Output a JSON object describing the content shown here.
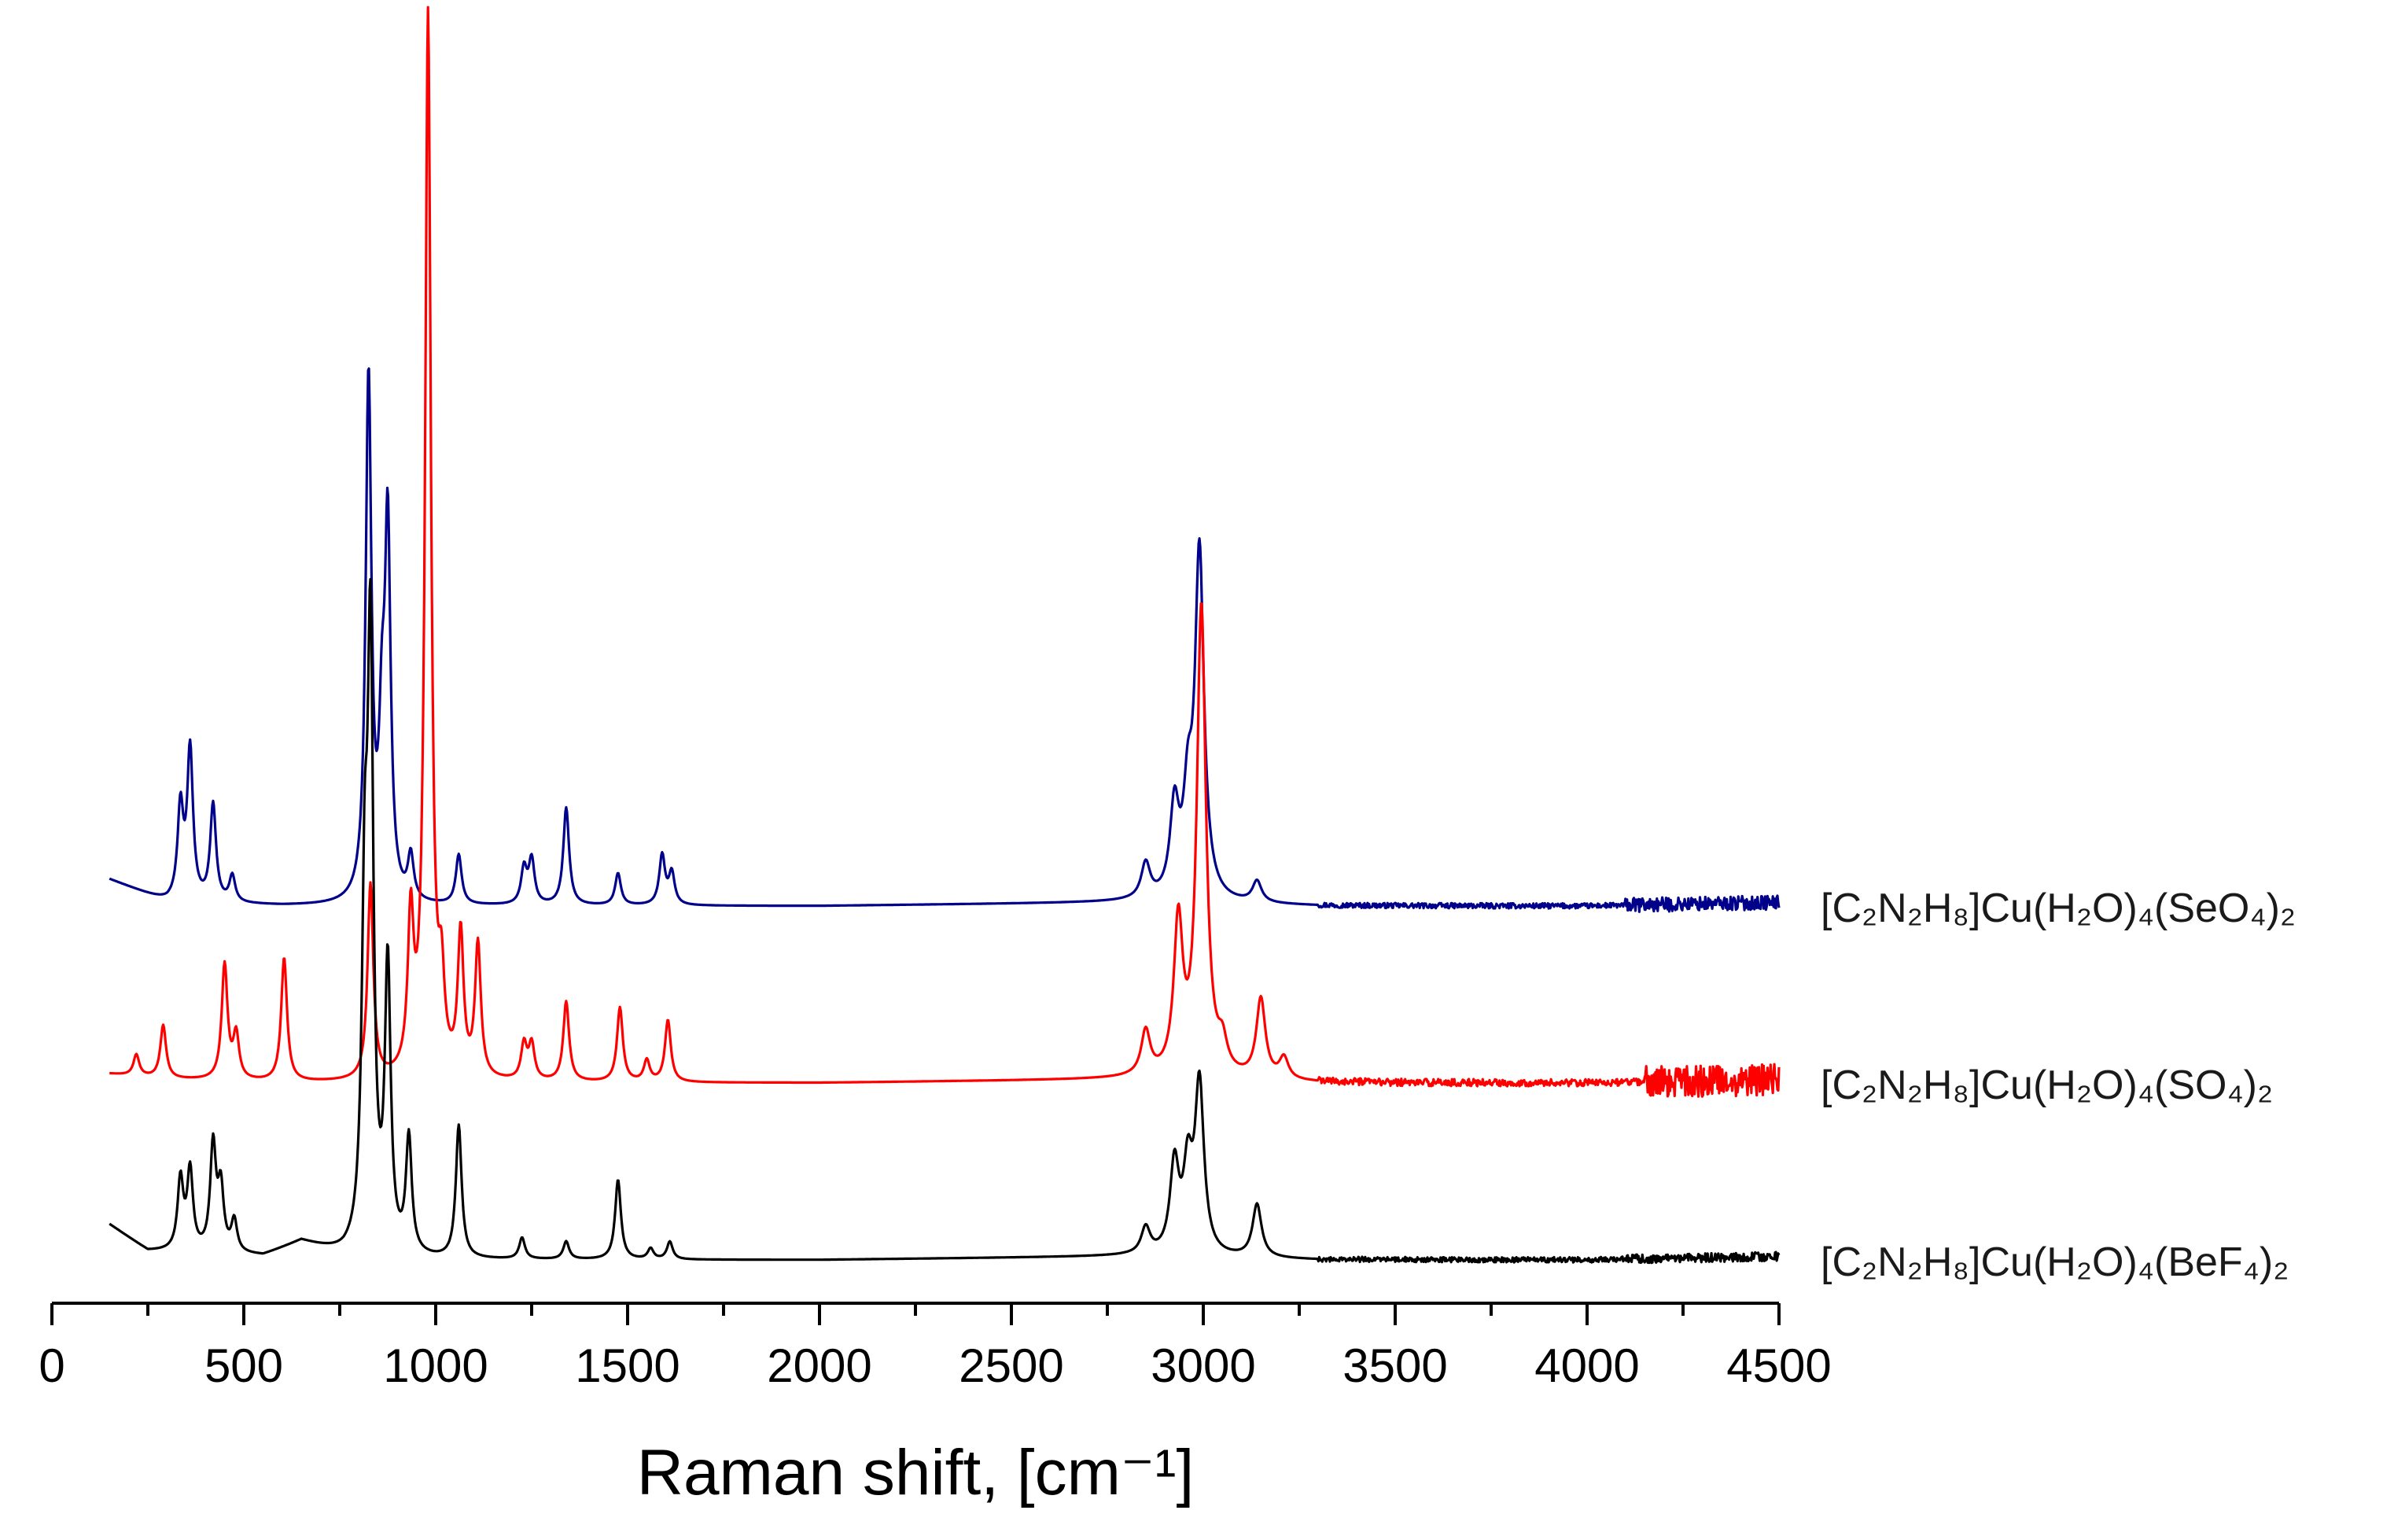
{
  "chart_data": {
    "type": "line",
    "title": "",
    "xlabel": "Raman shift, [cm⁻¹]",
    "ylabel": "",
    "xlim": [
      0,
      4500
    ],
    "x_ticks": [
      0,
      500,
      1000,
      1500,
      2000,
      2500,
      3000,
      3500,
      4000,
      4500
    ],
    "y_axis_visible": false,
    "grid": false,
    "legend_placement": "right, next to each trace",
    "series": [
      {
        "name": "[C₂N₂H₈]Cu(H₂O)₄(SeO₄)₂",
        "color": "#00008b",
        "offset": 2.0,
        "baseline": [
          [
            150,
            0.15
          ],
          [
            300,
            0.02
          ],
          [
            600,
            0.0
          ],
          [
            1000,
            0.0
          ],
          [
            2000,
            0.0
          ],
          [
            2800,
            0.02
          ],
          [
            3300,
            0.0
          ],
          [
            4000,
            0.0
          ],
          [
            4500,
            0.02
          ]
        ],
        "noise": {
          "start": 3300,
          "amp": 0.015,
          "large_start": 4100,
          "large_amp": 0.04
        },
        "peaks": [
          {
            "x": 335,
            "h": 0.52
          },
          {
            "x": 360,
            "h": 0.85
          },
          {
            "x": 420,
            "h": 0.55
          },
          {
            "x": 470,
            "h": 0.15
          },
          {
            "x": 825,
            "h": 2.95
          },
          {
            "x": 860,
            "h": 0.8
          },
          {
            "x": 875,
            "h": 2.05
          },
          {
            "x": 935,
            "h": 0.25
          },
          {
            "x": 1060,
            "h": 0.28
          },
          {
            "x": 1230,
            "h": 0.2
          },
          {
            "x": 1250,
            "h": 0.25
          },
          {
            "x": 1340,
            "h": 0.55
          },
          {
            "x": 1475,
            "h": 0.18
          },
          {
            "x": 1590,
            "h": 0.28
          },
          {
            "x": 1615,
            "h": 0.18
          },
          {
            "x": 2850,
            "h": 0.2
          },
          {
            "x": 2925,
            "h": 0.5
          },
          {
            "x": 2960,
            "h": 0.5
          },
          {
            "x": 2990,
            "h": 1.95
          },
          {
            "x": 3140,
            "h": 0.12
          }
        ]
      },
      {
        "name": "[C₂N₂H₈]Cu(H₂O)₄(SO₄)₂",
        "color": "#ff0000",
        "offset": 1.0,
        "baseline": [
          [
            150,
            0.05
          ],
          [
            300,
            0.02
          ],
          [
            600,
            0.0
          ],
          [
            1000,
            0.0
          ],
          [
            2000,
            0.0
          ],
          [
            2800,
            0.02
          ],
          [
            3300,
            0.0
          ],
          [
            4000,
            0.0
          ],
          [
            4500,
            0.02
          ]
        ],
        "noise": {
          "start": 3300,
          "amp": 0.02,
          "large_start": 4150,
          "large_amp": 0.09
        },
        "peaks": [
          {
            "x": 220,
            "h": 0.12
          },
          {
            "x": 290,
            "h": 0.3
          },
          {
            "x": 450,
            "h": 0.65
          },
          {
            "x": 480,
            "h": 0.25
          },
          {
            "x": 605,
            "h": 0.7
          },
          {
            "x": 830,
            "h": 1.1
          },
          {
            "x": 935,
            "h": 0.85
          },
          {
            "x": 980,
            "h": 6.0
          },
          {
            "x": 1015,
            "h": 0.45
          },
          {
            "x": 1065,
            "h": 0.8
          },
          {
            "x": 1110,
            "h": 0.75
          },
          {
            "x": 1230,
            "h": 0.2
          },
          {
            "x": 1250,
            "h": 0.2
          },
          {
            "x": 1340,
            "h": 0.45
          },
          {
            "x": 1480,
            "h": 0.42
          },
          {
            "x": 1550,
            "h": 0.12
          },
          {
            "x": 1605,
            "h": 0.35
          },
          {
            "x": 2850,
            "h": 0.25
          },
          {
            "x": 2935,
            "h": 0.85
          },
          {
            "x": 2995,
            "h": 2.65
          },
          {
            "x": 3050,
            "h": 0.15
          },
          {
            "x": 3150,
            "h": 0.45
          },
          {
            "x": 3210,
            "h": 0.12
          }
        ]
      },
      {
        "name": "[C₂N₂H₈]Cu(H₂O)₄(BeF₄)₂",
        "color": "#000000",
        "offset": 0.0,
        "baseline": [
          [
            150,
            0.2
          ],
          [
            250,
            0.05
          ],
          [
            550,
            0.02
          ],
          [
            650,
            0.1
          ],
          [
            760,
            0.02
          ],
          [
            1000,
            0.0
          ],
          [
            2000,
            0.0
          ],
          [
            2800,
            0.02
          ],
          [
            3300,
            0.0
          ],
          [
            4000,
            0.0
          ],
          [
            4500,
            0.02
          ]
        ],
        "noise": {
          "start": 3300,
          "amp": 0.015,
          "large_start": 4100,
          "large_amp": 0.025
        },
        "peaks": [
          {
            "x": 335,
            "h": 0.4
          },
          {
            "x": 360,
            "h": 0.45
          },
          {
            "x": 420,
            "h": 0.6
          },
          {
            "x": 440,
            "h": 0.35
          },
          {
            "x": 475,
            "h": 0.18
          },
          {
            "x": 815,
            "h": 1.75
          },
          {
            "x": 830,
            "h": 3.3
          },
          {
            "x": 875,
            "h": 1.6
          },
          {
            "x": 930,
            "h": 0.65
          },
          {
            "x": 1060,
            "h": 0.75
          },
          {
            "x": 1225,
            "h": 0.12
          },
          {
            "x": 1340,
            "h": 0.1
          },
          {
            "x": 1475,
            "h": 0.45
          },
          {
            "x": 1560,
            "h": 0.06
          },
          {
            "x": 1610,
            "h": 0.1
          },
          {
            "x": 2850,
            "h": 0.15
          },
          {
            "x": 2925,
            "h": 0.5
          },
          {
            "x": 2960,
            "h": 0.45
          },
          {
            "x": 2990,
            "h": 0.95
          },
          {
            "x": 3140,
            "h": 0.3
          }
        ]
      }
    ]
  }
}
